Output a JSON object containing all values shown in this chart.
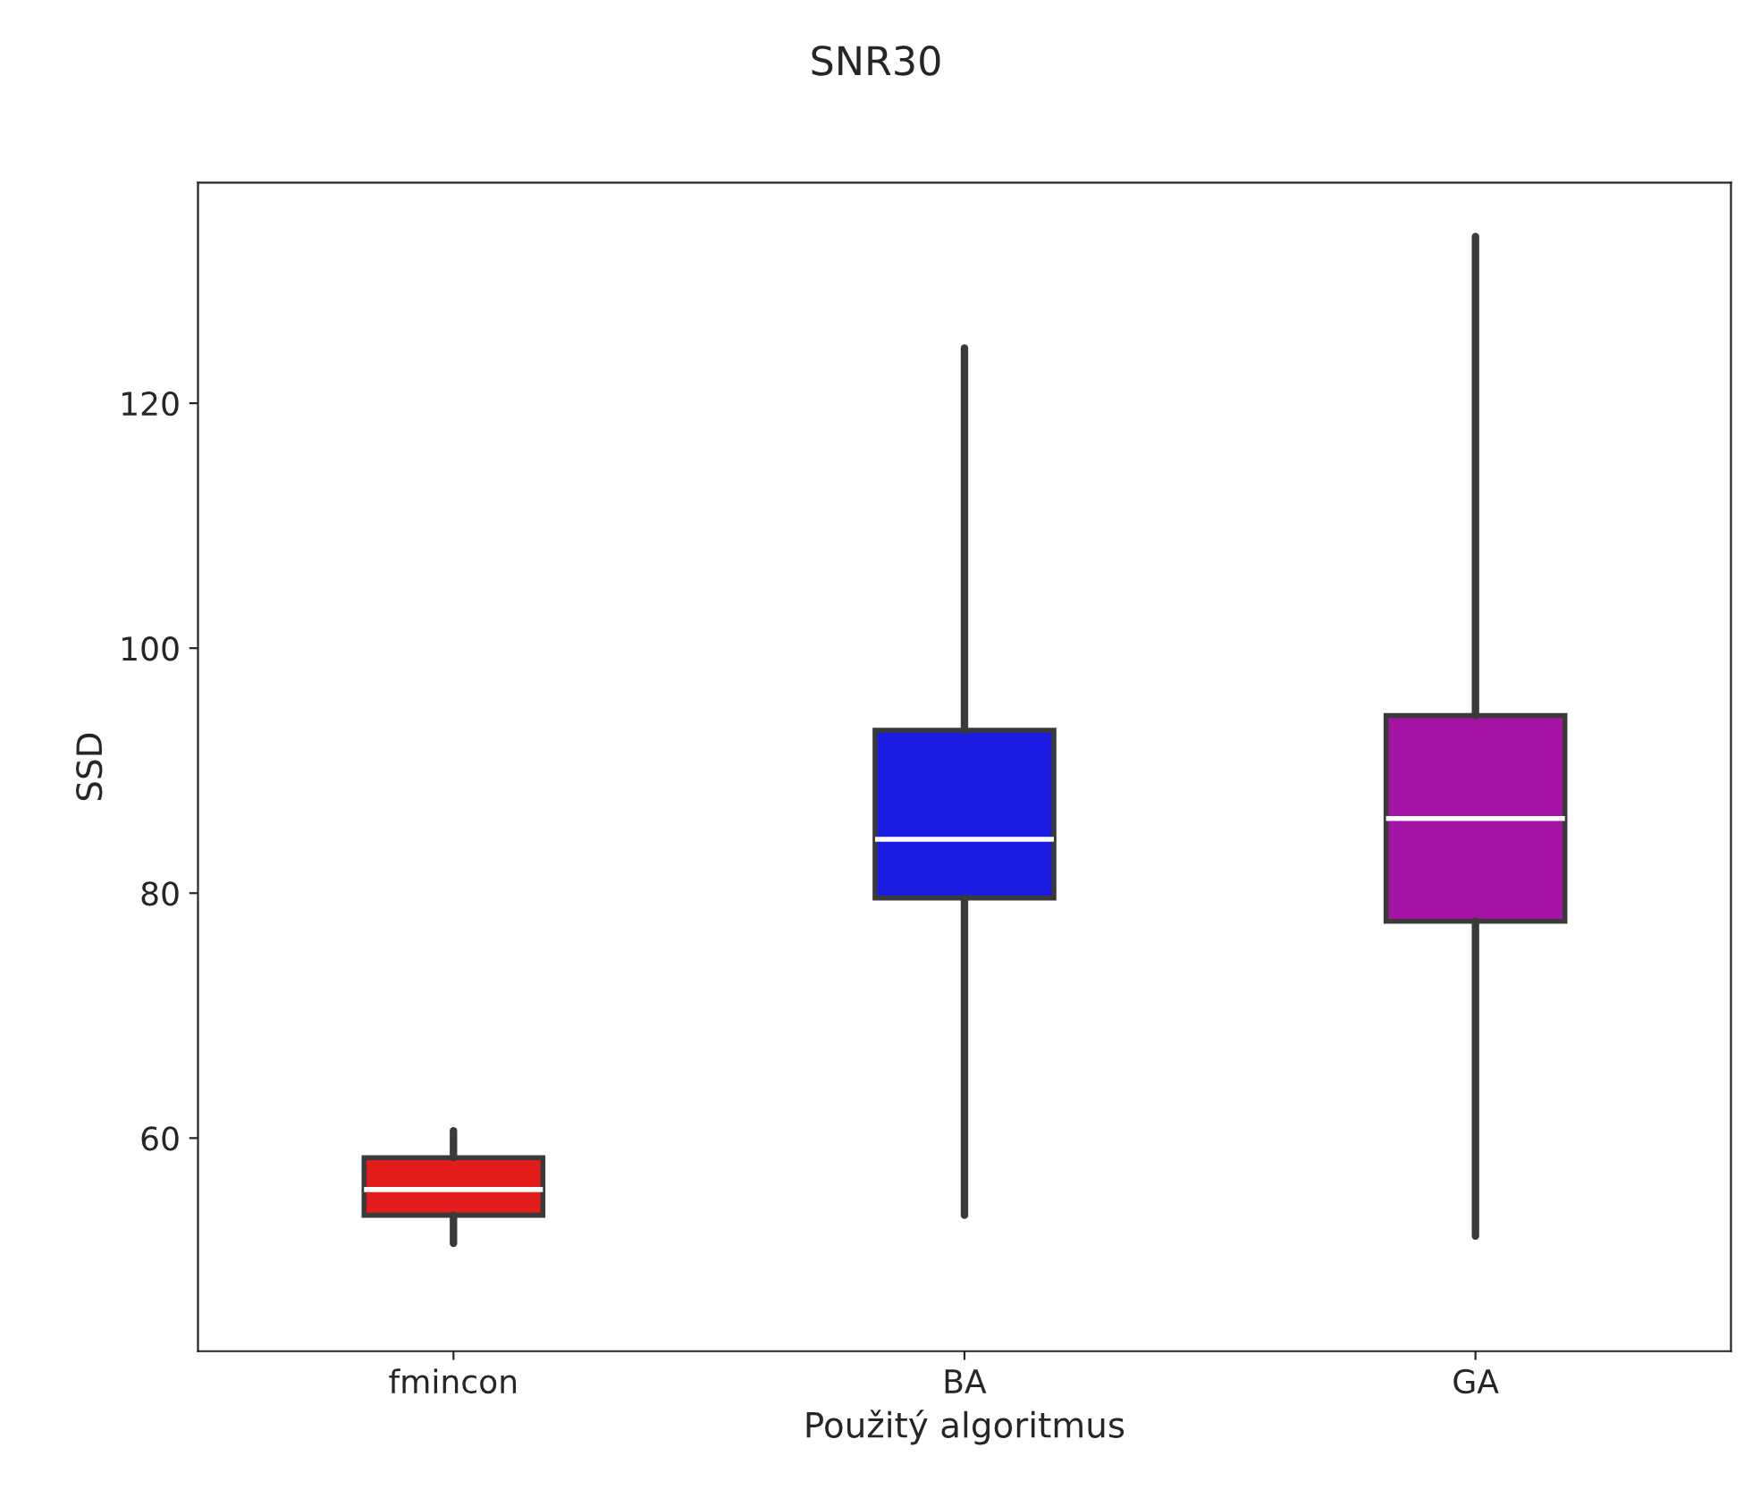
{
  "chart_data": {
    "type": "box",
    "title": "SNR30",
    "xlabel": "Použitý algoritmus",
    "ylabel": "SSD",
    "categories": [
      "fmincon",
      "BA",
      "GA"
    ],
    "colors": [
      "#e31c1c",
      "#1c1ce3",
      "#a514a5"
    ],
    "boxes": [
      {
        "low": 51.4,
        "q1": 53.7,
        "median": 55.8,
        "q3": 58.4,
        "high": 60.6
      },
      {
        "low": 53.7,
        "q1": 79.6,
        "median": 84.4,
        "q3": 93.3,
        "high": 124.5
      },
      {
        "low": 52,
        "q1": 77.7,
        "median": 86.1,
        "q3": 94.5,
        "high": 133.6
      }
    ],
    "ylim": [
      42.6,
      138
    ],
    "yticks": [
      60,
      80,
      100,
      120
    ],
    "grid": false
  }
}
